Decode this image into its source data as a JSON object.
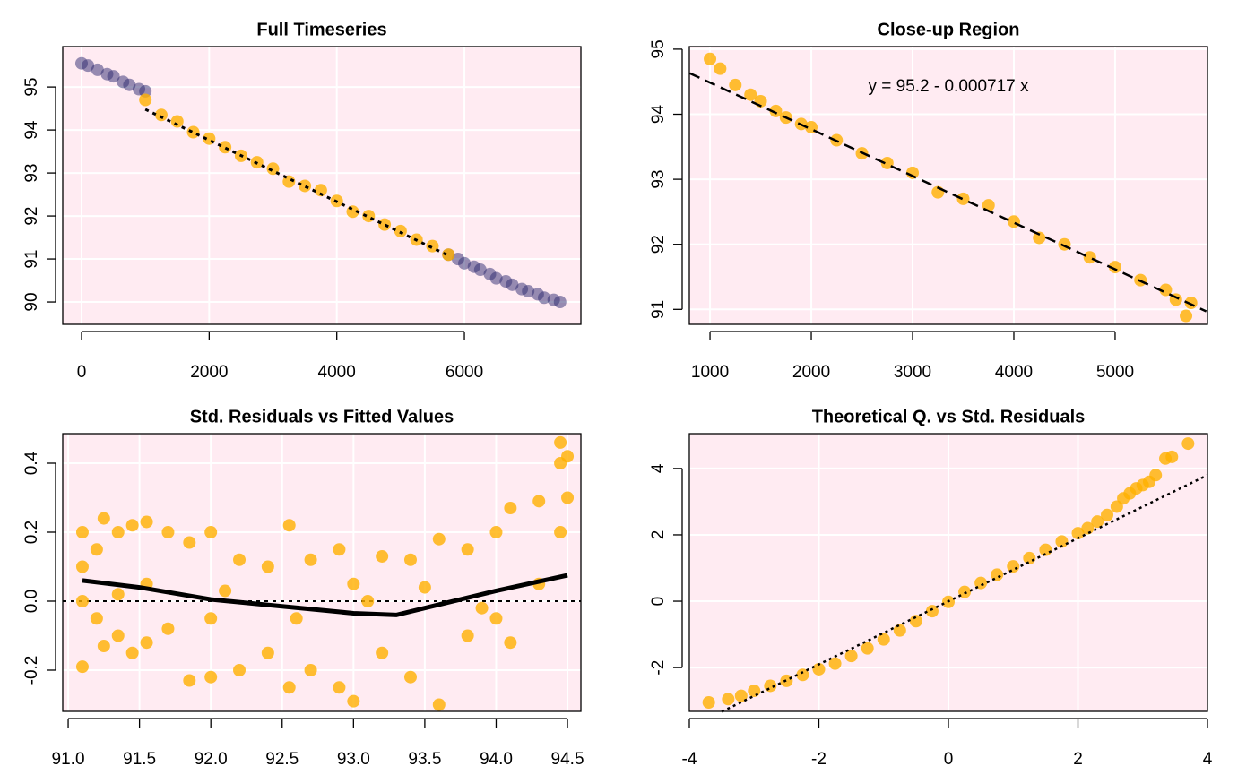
{
  "chart_data": [
    {
      "type": "scatter",
      "title": "Full Timeseries",
      "xlim": [
        -295,
        7826
      ],
      "ylim": [
        89.48,
        95.94
      ],
      "xticks": [
        0,
        2000,
        4000,
        6000
      ],
      "yticks": [
        90,
        91,
        92,
        93,
        94,
        95
      ],
      "grid": true,
      "background": "#ffebf2",
      "series": [
        {
          "mode": "markers",
          "color": "#2e2a70",
          "opacity": 0.5,
          "x": [
            0,
            100,
            250,
            400,
            500,
            650,
            750,
            900,
            1000,
            5750,
            5900,
            6000,
            6150,
            6250,
            6400,
            6500,
            6650,
            6750,
            6900,
            7000,
            7150,
            7250,
            7400,
            7500
          ],
          "y": [
            95.55,
            95.5,
            95.4,
            95.3,
            95.25,
            95.12,
            95.05,
            94.95,
            94.9,
            91.1,
            91.0,
            90.9,
            90.82,
            90.75,
            90.65,
            90.55,
            90.48,
            90.4,
            90.3,
            90.25,
            90.18,
            90.1,
            90.05,
            90.0
          ]
        },
        {
          "mode": "markers",
          "color": "#ffb000",
          "opacity": 0.8,
          "x": [
            1000,
            1250,
            1500,
            1750,
            2000,
            2250,
            2500,
            2750,
            3000,
            3250,
            3500,
            3750,
            4000,
            4250,
            4500,
            4750,
            5000,
            5250,
            5500,
            5750
          ],
          "y": [
            94.7,
            94.35,
            94.2,
            93.95,
            93.8,
            93.6,
            93.4,
            93.25,
            93.1,
            92.8,
            92.7,
            92.6,
            92.35,
            92.1,
            92.0,
            91.8,
            91.65,
            91.45,
            91.3,
            91.1
          ]
        },
        {
          "mode": "lines",
          "dash": "4,5",
          "color": "#000000",
          "width": 3,
          "x": [
            1000,
            5750
          ],
          "y": [
            94.48,
            91.08
          ]
        }
      ]
    },
    {
      "type": "scatter",
      "title": "Close-up Region",
      "annotation": "y = 95.2 - 0.000717 x",
      "xlim": [
        796,
        5912
      ],
      "ylim": [
        90.77,
        95.04
      ],
      "xticks": [
        1000,
        2000,
        3000,
        4000,
        5000
      ],
      "yticks": [
        91,
        92,
        93,
        94,
        95
      ],
      "grid": true,
      "background": "#ffebf2",
      "series": [
        {
          "mode": "markers",
          "color": "#ffb000",
          "opacity": 0.8,
          "x": [
            1000,
            1100,
            1250,
            1400,
            1500,
            1650,
            1750,
            1900,
            2000,
            2250,
            2500,
            2750,
            3000,
            3250,
            3500,
            3750,
            4000,
            4250,
            4500,
            4750,
            5000,
            5250,
            5500,
            5600,
            5750,
            5700
          ],
          "y": [
            94.85,
            94.7,
            94.45,
            94.3,
            94.2,
            94.05,
            93.95,
            93.85,
            93.8,
            93.6,
            93.4,
            93.25,
            93.1,
            92.8,
            92.7,
            92.6,
            92.35,
            92.1,
            92.0,
            91.8,
            91.65,
            91.45,
            91.3,
            91.15,
            91.1,
            90.9
          ]
        },
        {
          "mode": "lines",
          "dash": "12,7",
          "color": "#000000",
          "width": 2.5,
          "x": [
            800,
            5900
          ],
          "y": [
            94.63,
            90.97
          ]
        }
      ]
    },
    {
      "type": "scatter",
      "title": "Std. Residuals vs Fitted Values",
      "xlim": [
        90.962,
        94.594
      ],
      "ylim": [
        -0.3195,
        0.4857
      ],
      "xticks": [
        {
          "value": 91,
          "label": "91.0"
        },
        91.5,
        {
          "value": 92,
          "label": "92.0"
        },
        92.5,
        {
          "value": 93,
          "label": "93.0"
        },
        93.5,
        {
          "value": 94,
          "label": "94.0"
        },
        94.5
      ],
      "yticks": [
        -0.2,
        {
          "value": 0,
          "label": "0.0"
        },
        0.2,
        0.4
      ],
      "grid": true,
      "background": "#ffebf2",
      "hline": 0,
      "series": [
        {
          "mode": "markers",
          "color": "#ffb000",
          "opacity": 0.8,
          "x": [
            91.1,
            91.1,
            91.1,
            91.1,
            91.2,
            91.2,
            91.25,
            91.25,
            91.35,
            91.35,
            91.35,
            91.45,
            91.45,
            91.55,
            91.55,
            91.55,
            91.7,
            91.7,
            91.85,
            91.85,
            92.0,
            92.0,
            92.0,
            92.2,
            92.2,
            92.4,
            92.4,
            92.55,
            92.55,
            92.7,
            92.7,
            92.9,
            92.9,
            93.0,
            93.0,
            93.2,
            93.2,
            93.4,
            93.4,
            93.6,
            93.6,
            93.8,
            93.8,
            94.0,
            94.0,
            94.1,
            94.1,
            94.3,
            94.3,
            94.45,
            94.45,
            94.45,
            94.5,
            94.5,
            92.1,
            92.6,
            93.1,
            93.5,
            93.9
          ],
          "y": [
            0.2,
            0.1,
            0.0,
            -0.19,
            0.15,
            -0.05,
            0.24,
            -0.13,
            0.2,
            0.02,
            -0.1,
            0.22,
            -0.15,
            0.23,
            0.05,
            -0.12,
            0.2,
            -0.08,
            0.17,
            -0.23,
            0.2,
            -0.05,
            -0.22,
            0.12,
            -0.2,
            0.1,
            -0.15,
            0.22,
            -0.25,
            0.12,
            -0.2,
            0.15,
            -0.25,
            0.05,
            -0.29,
            0.13,
            -0.15,
            0.12,
            -0.22,
            0.18,
            -0.3,
            0.15,
            -0.1,
            0.2,
            -0.05,
            0.27,
            -0.12,
            0.29,
            0.05,
            0.46,
            0.4,
            0.2,
            0.42,
            0.3,
            0.03,
            -0.05,
            0.0,
            0.04,
            -0.02
          ]
        },
        {
          "mode": "lines",
          "color": "#000000",
          "width": 5,
          "x": [
            91.1,
            91.5,
            92.0,
            92.5,
            93.0,
            93.3,
            93.6,
            94.0,
            94.5
          ],
          "y": [
            0.06,
            0.04,
            0.005,
            -0.015,
            -0.035,
            -0.04,
            -0.01,
            0.03,
            0.075
          ]
        }
      ]
    },
    {
      "type": "scatter",
      "title": "Theoretical Q. vs Std. Residuals",
      "xlim": [
        -4,
        4
      ],
      "ylim": [
        -3.32,
        5.05
      ],
      "xticks": [
        -4,
        -2,
        0,
        2,
        4
      ],
      "yticks": [
        -2,
        0,
        2,
        4
      ],
      "grid": true,
      "background": "#ffebf2",
      "series": [
        {
          "mode": "markers",
          "color": "#ffb000",
          "opacity": 0.8,
          "x": [
            -3.7,
            -3.4,
            -3.2,
            -3.0,
            -2.75,
            -2.5,
            -2.25,
            -2.0,
            -1.75,
            -1.5,
            -1.25,
            -1.0,
            -0.75,
            -0.5,
            -0.25,
            0,
            0.25,
            0.5,
            0.75,
            1.0,
            1.25,
            1.5,
            1.75,
            2.0,
            2.15,
            2.3,
            2.45,
            2.6,
            2.7,
            2.8,
            2.9,
            3.0,
            3.1,
            3.2,
            3.35,
            3.45,
            3.7
          ],
          "y": [
            -3.05,
            -2.95,
            -2.85,
            -2.7,
            -2.55,
            -2.4,
            -2.22,
            -2.05,
            -1.88,
            -1.65,
            -1.42,
            -1.15,
            -0.88,
            -0.6,
            -0.3,
            -0.02,
            0.28,
            0.55,
            0.8,
            1.05,
            1.3,
            1.55,
            1.8,
            2.05,
            2.2,
            2.4,
            2.6,
            2.85,
            3.1,
            3.25,
            3.4,
            3.5,
            3.6,
            3.8,
            4.3,
            4.35,
            4.75
          ]
        },
        {
          "mode": "lines",
          "dash": "3,4",
          "color": "#000000",
          "width": 2.5,
          "x": [
            -3.5,
            4
          ],
          "y": [
            -3.33,
            3.8
          ]
        }
      ]
    }
  ]
}
